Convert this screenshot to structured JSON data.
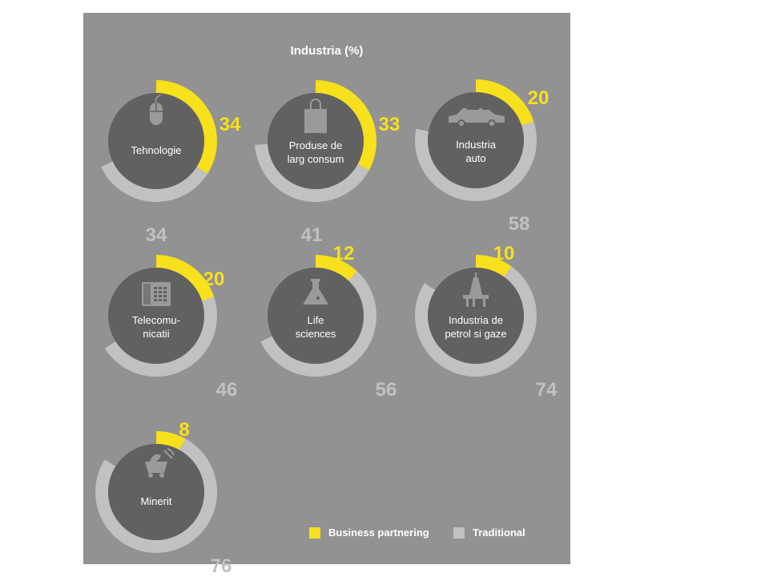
{
  "chart_data": {
    "type": "donut",
    "title": "Industria (%)",
    "colors": {
      "business_partnering": "#f7e01c",
      "traditional": "#c1c1c1",
      "track": "#929292",
      "center": "#616161"
    },
    "legend": {
      "placement": "bottom-right",
      "items": [
        {
          "key": "business_partnering",
          "label": "Business partnering"
        },
        {
          "key": "traditional",
          "label": "Traditional"
        }
      ]
    },
    "series": [
      {
        "name": "Business partnering",
        "values": [
          34,
          33,
          20,
          20,
          12,
          10,
          8
        ]
      },
      {
        "name": "Traditional",
        "values": [
          34,
          41,
          58,
          46,
          56,
          74,
          76
        ]
      }
    ],
    "categories": [
      {
        "label_lines": [
          "Tehnologie"
        ],
        "icon": "mouse-icon",
        "business_partnering": 34,
        "traditional": 34
      },
      {
        "label_lines": [
          "Produse de",
          "larg consum"
        ],
        "icon": "shopping-bag-icon",
        "business_partnering": 33,
        "traditional": 41
      },
      {
        "label_lines": [
          "Industria",
          "auto"
        ],
        "icon": "car-icon",
        "business_partnering": 20,
        "traditional": 58
      },
      {
        "label_lines": [
          "Telecomu-",
          "nicatii"
        ],
        "icon": "phone-icon",
        "business_partnering": 20,
        "traditional": 46
      },
      {
        "label_lines": [
          "Life",
          "sciences"
        ],
        "icon": "flask-icon",
        "business_partnering": 12,
        "traditional": 56
      },
      {
        "label_lines": [
          "Industria de",
          "petrol si gaze"
        ],
        "icon": "oil-rig-icon",
        "business_partnering": 10,
        "traditional": 74
      },
      {
        "label_lines": [
          "Minerit"
        ],
        "icon": "mining-cart-icon",
        "business_partnering": 8,
        "traditional": 76
      }
    ]
  }
}
